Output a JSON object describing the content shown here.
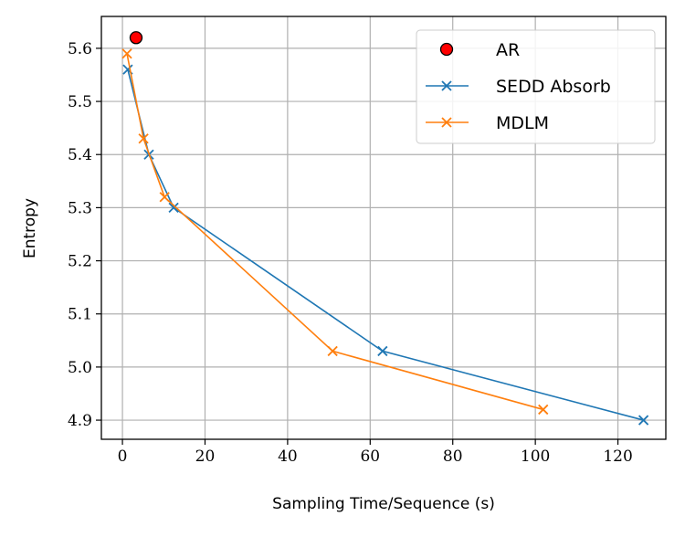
{
  "chart_data": {
    "type": "line",
    "title": "",
    "xlabel": "Sampling Time/Sequence (s)",
    "ylabel": "Entropy",
    "xlim": [
      -5.1,
      131.6
    ],
    "ylim": [
      4.864,
      5.66
    ],
    "xticks": [
      0,
      20,
      40,
      60,
      80,
      100,
      120
    ],
    "yticks": [
      4.9,
      5.0,
      5.1,
      5.2,
      5.3,
      5.4,
      5.5,
      5.6
    ],
    "ytick_labels": [
      "4.9",
      "5.0",
      "5.1",
      "5.2",
      "5.3",
      "5.4",
      "5.5",
      "5.6"
    ],
    "grid": true,
    "legend_position": "top-right",
    "series": [
      {
        "name": "AR",
        "kind": "scatter",
        "marker": "circle",
        "color": "#ff0000",
        "edge": "#000000",
        "x": [
          3.3
        ],
        "y": [
          5.62
        ]
      },
      {
        "name": "SEDD Absorb",
        "kind": "line",
        "marker": "x",
        "color": "#1f77b4",
        "x": [
          1.3,
          6.4,
          12.4,
          63.0,
          126.2
        ],
        "y": [
          5.56,
          5.4,
          5.3,
          5.03,
          4.9
        ]
      },
      {
        "name": "MDLM",
        "kind": "line",
        "marker": "x",
        "color": "#ff7f0e",
        "x": [
          1.1,
          5.1,
          10.2,
          50.9,
          101.9
        ],
        "y": [
          5.59,
          5.43,
          5.32,
          5.03,
          4.92
        ]
      }
    ]
  }
}
